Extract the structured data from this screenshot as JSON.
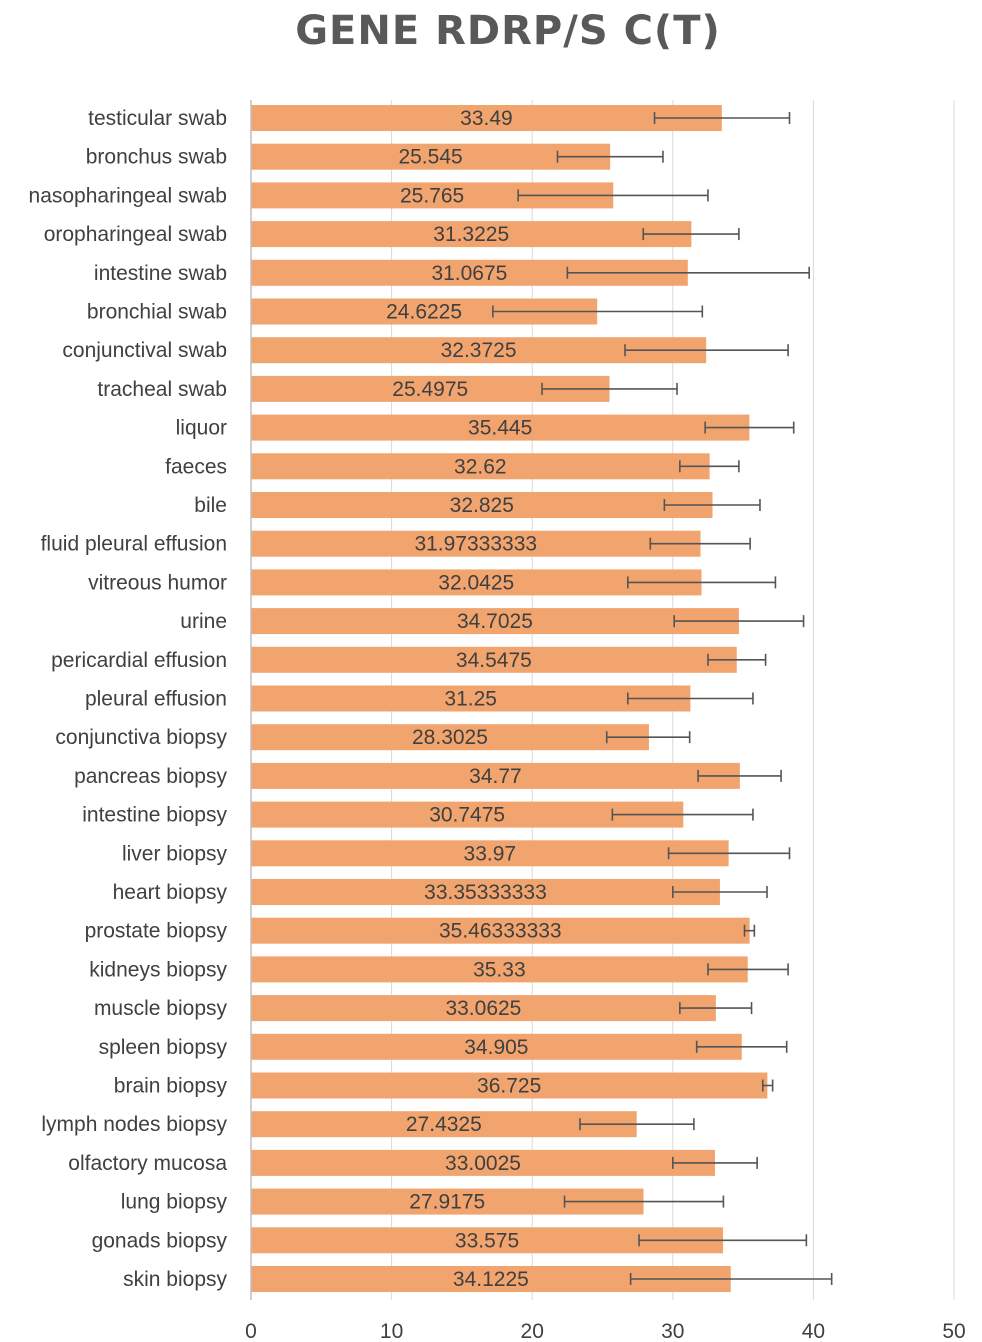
{
  "chart_data": {
    "type": "bar",
    "orientation": "horizontal",
    "title": "GENE RDRP/S C(T)",
    "xlabel": "",
    "ylabel": "",
    "xlim": [
      0,
      50
    ],
    "x_ticks": [
      "0",
      "10",
      "20",
      "30",
      "40",
      "50"
    ],
    "grid": "vertical",
    "bar_color": "#f2a46f",
    "error_bar_color": "#555555",
    "categories": [
      "testicular swab",
      "bronchus swab",
      "nasopharingeal swab",
      "oropharingeal swab",
      "intestine swab",
      "bronchial swab",
      "conjunctival swab",
      "tracheal swab",
      "liquor",
      "faeces",
      "bile",
      "fluid pleural effusion",
      "vitreous humor",
      "urine",
      "pericardial effusion",
      "pleural effusion",
      "conjunctiva biopsy",
      "pancreas biopsy",
      "intestine biopsy",
      "liver biopsy",
      "heart biopsy",
      "prostate biopsy",
      "kidneys biopsy",
      "muscle biopsy",
      "spleen biopsy",
      "brain biopsy",
      "lymph nodes biopsy",
      "olfactory mucosa",
      "lung biopsy",
      "gonads biopsy",
      "skin biopsy"
    ],
    "values": [
      33.49,
      25.545,
      25.765,
      31.3225,
      31.0675,
      24.6225,
      32.3725,
      25.4975,
      35.445,
      32.62,
      32.825,
      31.97333333,
      32.0425,
      34.7025,
      34.5475,
      31.25,
      28.3025,
      34.77,
      30.7475,
      33.97,
      33.35333333,
      35.46333333,
      35.33,
      33.0625,
      34.905,
      36.725,
      27.4325,
      33.0025,
      27.9175,
      33.575,
      34.1225
    ],
    "value_labels": [
      "33.49",
      "25.545",
      "25.765",
      "31.3225",
      "31.0675",
      "24.6225",
      "32.3725",
      "25.4975",
      "35.445",
      "32.62",
      "32.825",
      "31.97333333",
      "32.0425",
      "34.7025",
      "34.5475",
      "31.25",
      "28.3025",
      "34.77",
      "30.7475",
      "33.97",
      "33.35333333",
      "35.46333333",
      "35.33",
      "33.0625",
      "34.905",
      "36.725",
      "27.4325",
      "33.0025",
      "27.9175",
      "33.575",
      "34.1225"
    ],
    "error_low": [
      28.7,
      21.8,
      19.0,
      27.9,
      22.5,
      17.2,
      26.6,
      20.7,
      32.3,
      30.5,
      29.4,
      28.4,
      26.8,
      30.1,
      32.5,
      26.8,
      25.3,
      31.8,
      25.7,
      29.7,
      30.0,
      35.1,
      32.5,
      30.5,
      31.7,
      36.4,
      23.4,
      30.0,
      22.3,
      27.6,
      27.0
    ],
    "error_high": [
      38.3,
      29.3,
      32.5,
      34.7,
      39.7,
      32.1,
      38.2,
      30.3,
      38.6,
      34.7,
      36.2,
      35.5,
      37.3,
      39.3,
      36.6,
      35.7,
      31.2,
      37.7,
      35.7,
      38.3,
      36.7,
      35.8,
      38.2,
      35.6,
      38.1,
      37.1,
      31.5,
      36.0,
      33.6,
      39.5,
      41.3
    ]
  }
}
